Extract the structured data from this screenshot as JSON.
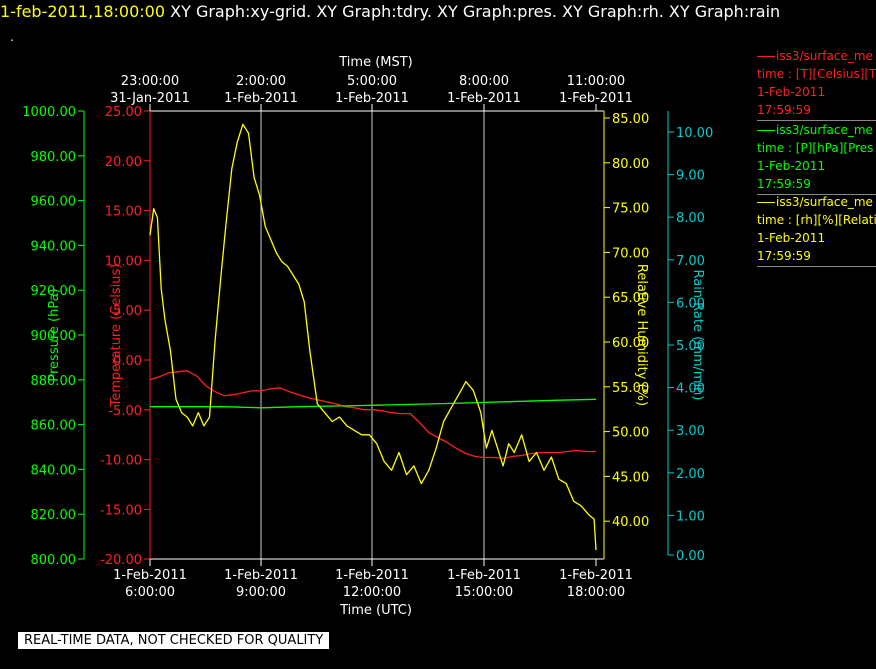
{
  "header": {
    "date": "1-feb-2011,18:00:00",
    "graphs": "  XY Graph:xy-grid.  XY Graph:tdry.  XY Graph:pres.  XY Graph:rh.  XY Graph:rain",
    "dot": "."
  },
  "footer": {
    "warning": "REAL-TIME DATA, NOT CHECKED FOR QUALITY"
  },
  "legend": [
    {
      "name": "iss3/surface_me",
      "line2": "time : [T][Celsius][T",
      "line3": "1-Feb-2011",
      "line4": "17:59:59",
      "color": "#ff2020"
    },
    {
      "name": "iss3/surface_me",
      "line2": "time : [P][hPa][Pres",
      "line3": "1-Feb-2011",
      "line4": "17:59:59",
      "color": "#00ff00"
    },
    {
      "name": "iss3/surface_me",
      "line2": "time : [rh][%][Relati",
      "line3": "1-Feb-2011",
      "line4": "17:59:59",
      "color": "#ffff00"
    }
  ],
  "chart_data": {
    "type": "line",
    "top_axis": {
      "title": "Time (MST)",
      "ticks": [
        {
          "time": "23:00:00",
          "date": "31-Jan-2011"
        },
        {
          "time": "2:00:00",
          "date": "1-Feb-2011"
        },
        {
          "time": "5:00:00",
          "date": "1-Feb-2011"
        },
        {
          "time": "8:00:00",
          "date": "1-Feb-2011"
        },
        {
          "time": "11:00:00",
          "date": "1-Feb-2011"
        }
      ]
    },
    "bottom_axis": {
      "title": "Time (UTC)",
      "ticks": [
        {
          "date": "1-Feb-2011",
          "time": "6:00:00"
        },
        {
          "date": "1-Feb-2011",
          "time": "9:00:00"
        },
        {
          "date": "1-Feb-2011",
          "time": "12:00:00"
        },
        {
          "date": "1-Feb-2011",
          "time": "15:00:00"
        },
        {
          "date": "1-Feb-2011",
          "time": "18:00:00"
        }
      ],
      "xlim_utc_hours": [
        6,
        18
      ]
    },
    "axes": {
      "pressure": {
        "label": "Pressure (hPa)",
        "color": "#00ff00",
        "ylim": [
          800,
          1000
        ],
        "ticks": [
          "1000.00",
          "980.00",
          "960.00",
          "940.00",
          "920.00",
          "900.00",
          "880.00",
          "860.00",
          "840.00",
          "820.00",
          "800.00"
        ]
      },
      "temperature": {
        "label": "Temperature (Celsius)",
        "color": "#ff2020",
        "ylim": [
          -20,
          25
        ],
        "ticks": [
          "25.00",
          "20.00",
          "15.00",
          "10.00",
          "5.00",
          "0.00",
          "-5.00",
          "-10.00",
          "-15.00",
          "-20.00"
        ]
      },
      "rh": {
        "label": "Relative Humidity (%)",
        "color": "#ffff00",
        "ylim": [
          35.5,
          86
        ],
        "ticks": [
          "85.00",
          "80.00",
          "75.00",
          "70.00",
          "65.00",
          "60.00",
          "55.00",
          "50.00",
          "45.00",
          "40.00"
        ]
      },
      "rain": {
        "label": "Rain Rate (mm/min)",
        "color": "#00cccc",
        "ylim": [
          0,
          10.3
        ],
        "ticks": [
          "10.00",
          "9.00",
          "8.00",
          "7.00",
          "6.00",
          "5.00",
          "4.00",
          "3.00",
          "2.00",
          "1.00",
          "0.00"
        ]
      }
    },
    "series": [
      {
        "name": "iss3/surface_me",
        "axis": "temperature",
        "color": "#ff2020",
        "x": [
          6.0,
          6.25,
          6.5,
          6.75,
          7.0,
          7.25,
          7.5,
          7.75,
          8.0,
          8.25,
          8.5,
          8.75,
          9.0,
          9.25,
          9.5,
          9.75,
          10.0,
          10.25,
          10.5,
          10.75,
          11.0,
          11.25,
          11.5,
          11.75,
          12.0,
          12.25,
          12.5,
          12.75,
          13.0,
          13.25,
          13.5,
          13.75,
          14.0,
          14.25,
          14.5,
          14.75,
          15.0,
          15.25,
          15.5,
          15.75,
          16.0,
          16.25,
          16.5,
          16.75,
          17.0,
          17.25,
          17.5,
          17.75,
          18.0
        ],
        "values": [
          -2.0,
          -1.7,
          -1.3,
          -1.2,
          -1.1,
          -1.6,
          -2.6,
          -3.2,
          -3.6,
          -3.5,
          -3.3,
          -3.1,
          -3.1,
          -2.9,
          -2.8,
          -3.2,
          -3.5,
          -3.8,
          -4.0,
          -4.2,
          -4.4,
          -4.7,
          -4.8,
          -5.0,
          -5.0,
          -5.1,
          -5.3,
          -5.4,
          -5.4,
          -6.3,
          -7.3,
          -7.8,
          -8.3,
          -8.9,
          -9.4,
          -9.7,
          -9.8,
          -9.8,
          -9.9,
          -9.7,
          -9.6,
          -9.4,
          -9.3,
          -9.3,
          -9.3,
          -9.2,
          -9.1,
          -9.2,
          -9.2
        ]
      },
      {
        "name": "iss3/surface_me",
        "axis": "pressure",
        "color": "#00ff00",
        "x": [
          6.0,
          7.0,
          8.0,
          9.0,
          10.0,
          11.0,
          12.0,
          13.0,
          14.0,
          15.0,
          16.0,
          17.0,
          18.0
        ],
        "values": [
          868.0,
          868.0,
          868.0,
          867.5,
          868.0,
          868.3,
          868.6,
          869.0,
          869.4,
          869.9,
          870.4,
          870.9,
          871.3
        ]
      },
      {
        "name": "iss3/surface_me",
        "axis": "rh",
        "color": "#ffff00",
        "x": [
          6.0,
          6.1,
          6.2,
          6.3,
          6.4,
          6.55,
          6.7,
          6.85,
          7.0,
          7.15,
          7.3,
          7.45,
          7.6,
          7.75,
          7.9,
          8.05,
          8.2,
          8.35,
          8.5,
          8.65,
          8.8,
          8.95,
          9.1,
          9.25,
          9.4,
          9.55,
          9.7,
          9.85,
          10.0,
          10.15,
          10.3,
          10.5,
          10.7,
          10.9,
          11.1,
          11.3,
          11.5,
          11.7,
          11.9,
          12.1,
          12.3,
          12.5,
          12.7,
          12.9,
          13.1,
          13.3,
          13.5,
          13.7,
          13.9,
          14.1,
          14.3,
          14.5,
          14.7,
          14.9,
          15.05,
          15.2,
          15.35,
          15.5,
          15.65,
          15.8,
          16.0,
          16.2,
          16.4,
          16.6,
          16.8,
          17.0,
          17.2,
          17.4,
          17.6,
          17.8,
          17.95,
          18.0
        ],
        "values": [
          72.0,
          75.0,
          74.0,
          66.0,
          62.5,
          59.0,
          53.5,
          52.0,
          51.5,
          50.5,
          52.0,
          50.5,
          51.5,
          60.0,
          67.0,
          73.5,
          79.5,
          82.5,
          84.5,
          83.5,
          78.5,
          76.5,
          73.0,
          71.5,
          70.0,
          69.0,
          68.5,
          67.5,
          66.5,
          64.5,
          59.0,
          53.0,
          52.0,
          51.0,
          51.5,
          50.5,
          50.0,
          49.5,
          49.5,
          48.5,
          46.5,
          45.5,
          47.5,
          45.0,
          46.0,
          44.0,
          45.5,
          48.0,
          51.0,
          52.5,
          54.0,
          55.5,
          54.5,
          52.0,
          48.0,
          50.0,
          48.0,
          46.0,
          48.5,
          47.5,
          49.5,
          46.5,
          47.5,
          45.5,
          47.0,
          44.5,
          44.0,
          42.0,
          41.5,
          40.5,
          40.0,
          36.5
        ]
      }
    ]
  }
}
